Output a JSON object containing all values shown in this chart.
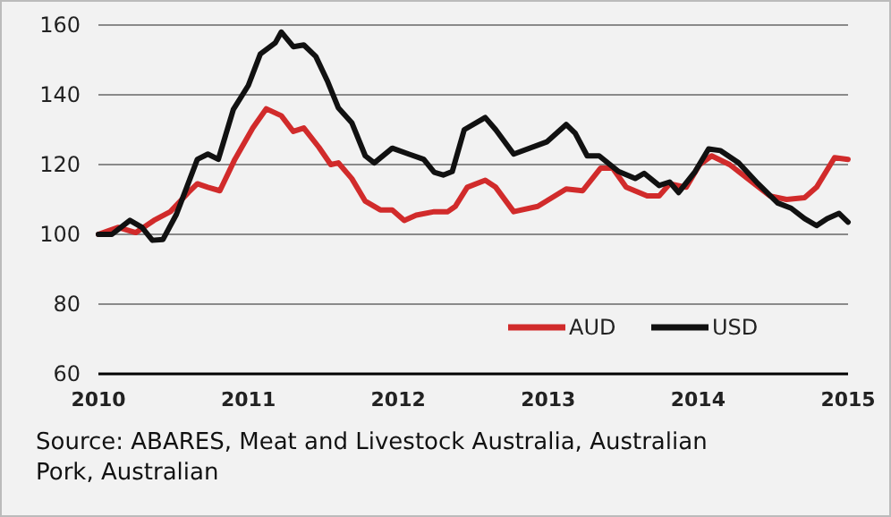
{
  "chart_data": {
    "type": "line",
    "xlim": [
      2010,
      2015
    ],
    "xticks": [
      2010,
      2011,
      2012,
      2013,
      2014,
      2015
    ],
    "ylim": [
      60,
      160
    ],
    "yticks": [
      60,
      80,
      100,
      120,
      140,
      160
    ],
    "grid": "y",
    "legend": "bottom right",
    "line_style": "solid",
    "marker": "none",
    "annotations": [
      "Source: ABARES, Meat and Livestock Australia, Australian Pork, Australian"
    ],
    "series": [
      {
        "name": "AUD",
        "color": "#d12b2b",
        "x": [
          2010,
          2010.13,
          2010.25,
          2010.37,
          2010.48,
          2010.6,
          2010.66,
          2010.73,
          2010.81,
          2010.91,
          2011.03,
          2011.12,
          2011.22,
          2011.3,
          2011.37,
          2011.47,
          2011.55,
          2011.6,
          2011.69,
          2011.78,
          2011.88,
          2011.96,
          2012.04,
          2012.12,
          2012.24,
          2012.33,
          2012.38,
          2012.46,
          2012.58,
          2012.65,
          2012.77,
          2012.93,
          2013.12,
          2013.23,
          2013.35,
          2013.43,
          2013.52,
          2013.66,
          2013.74,
          2013.81,
          2013.92,
          2014.01,
          2014.09,
          2014.21,
          2014.33,
          2014.48,
          2014.59,
          2014.71,
          2014.79,
          2014.91,
          2015
        ],
        "values": [
          100,
          102,
          100.5,
          104,
          106.5,
          112,
          114.5,
          113.5,
          112.5,
          121.5,
          130.5,
          136,
          134,
          129.5,
          130.5,
          125,
          120,
          120.5,
          116,
          109.5,
          107,
          107,
          104,
          105.5,
          106.5,
          106.5,
          108,
          113.5,
          115.5,
          113.5,
          106.5,
          108,
          113,
          112.5,
          119,
          119,
          113.5,
          111,
          111,
          114.5,
          113.5,
          120,
          122.5,
          120,
          116,
          111,
          110,
          110.5,
          113.5,
          122,
          121.5
        ]
      },
      {
        "name": "USD",
        "color": "#111111",
        "x": [
          2010,
          2010.09,
          2010.21,
          2010.29,
          2010.36,
          2010.43,
          2010.52,
          2010.6,
          2010.66,
          2010.73,
          2010.8,
          2010.9,
          2011,
          2011.08,
          2011.18,
          2011.22,
          2011.3,
          2011.37,
          2011.45,
          2011.53,
          2011.6,
          2011.69,
          2011.78,
          2011.84,
          2011.96,
          2012.07,
          2012.17,
          2012.24,
          2012.3,
          2012.36,
          2012.44,
          2012.58,
          2012.65,
          2012.77,
          2012.99,
          2013.12,
          2013.18,
          2013.26,
          2013.34,
          2013.47,
          2013.58,
          2013.64,
          2013.74,
          2013.81,
          2013.87,
          2013.98,
          2014.07,
          2014.15,
          2014.27,
          2014.4,
          2014.53,
          2014.62,
          2014.71,
          2014.79,
          2014.86,
          2014.94,
          2015
        ],
        "values": [
          100,
          100,
          104,
          102,
          98.3,
          98.5,
          105.7,
          114.7,
          121.5,
          123,
          121.5,
          135.8,
          142.7,
          151.7,
          154.9,
          158,
          153.8,
          154.3,
          151,
          143.7,
          136.3,
          132,
          122.5,
          120.5,
          124.7,
          123,
          121.5,
          117.8,
          117,
          118,
          130,
          133.5,
          130,
          123,
          126.5,
          131.5,
          129,
          122.5,
          122.5,
          118,
          116,
          117.5,
          114,
          115,
          112,
          118,
          124.5,
          124,
          120.5,
          114.5,
          109,
          107.5,
          104.5,
          102.5,
          104.5,
          106,
          103.5
        ]
      }
    ]
  }
}
